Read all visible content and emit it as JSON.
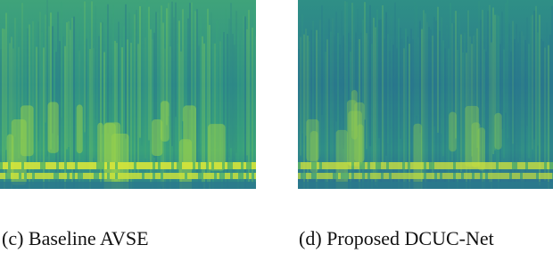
{
  "panels": [
    {
      "caption": "(c) Baseline AVSE"
    },
    {
      "caption": "(d) Proposed DCUC-Net"
    }
  ]
}
